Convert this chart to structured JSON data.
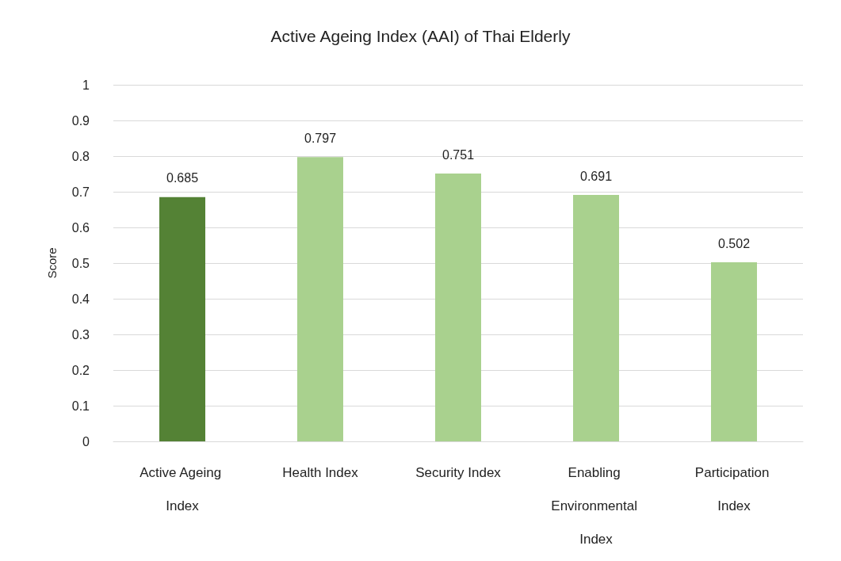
{
  "chart_data": {
    "type": "bar",
    "title": "Active Ageing Index (AAI) of Thai Elderly",
    "ylabel": "Score",
    "categories": [
      "Active Ageing Index",
      "Health Index",
      "Security Index",
      "Enabling Environmental Index",
      "Participation Index"
    ],
    "values": [
      0.685,
      0.797,
      0.751,
      0.691,
      0.502
    ],
    "colors": [
      "#548235",
      "#a9d18e",
      "#a9d18e",
      "#a9d18e",
      "#a9d18e"
    ],
    "ylim": [
      0,
      1
    ],
    "yticks": [
      0,
      0.1,
      0.2,
      0.3,
      0.4,
      0.5,
      0.6,
      0.7,
      0.8,
      0.9,
      1
    ],
    "grid": "y",
    "data_labels": true
  }
}
